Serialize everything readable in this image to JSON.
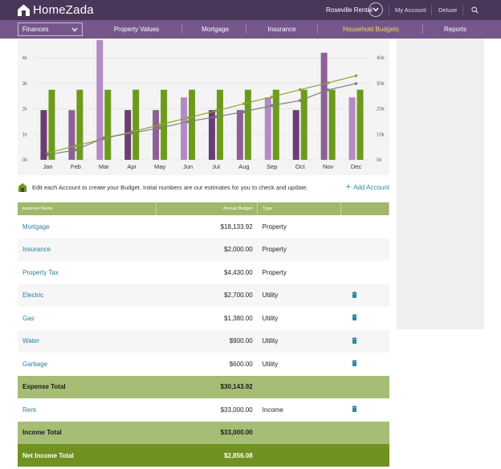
{
  "app": {
    "name": "HomeZada"
  },
  "topbar": {
    "property": "Roseville Rental",
    "my_account": "My Account",
    "plan": "Deluxe",
    "search_icon": "search-icon"
  },
  "nav": {
    "section_select": "Finances",
    "items": [
      "Property Values",
      "Mortgage",
      "Insurance",
      "Household Budgets",
      "Reports"
    ],
    "active_index": 3,
    "colors": {
      "topbar": "#4a3659",
      "navbar": "#76578b",
      "active": "#f2d76a"
    }
  },
  "chart_data": {
    "type": "bar",
    "categories": [
      "Jan",
      "Feb",
      "Mar",
      "Apr",
      "May",
      "Jun",
      "Jul",
      "Aug",
      "Sep",
      "Oct",
      "Nov",
      "Dec"
    ],
    "left_axis": {
      "ticks": [
        "0k",
        "1k",
        "2k",
        "3k",
        "4k"
      ],
      "range": [
        0,
        4600
      ]
    },
    "right_axis": {
      "ticks": [
        "0k",
        "10k",
        "20k",
        "30k",
        "40k"
      ],
      "range": [
        0,
        46000
      ]
    },
    "series": [
      {
        "values": [
          1950,
          1950,
          4700,
          1950,
          1950,
          2450,
          1950,
          1950,
          2450,
          1950,
          4200,
          2450
        ],
        "colors": [
          "#6b3d73",
          "#8e5f96",
          "#b48ac4",
          "#6b3d73",
          "#8e5f96",
          "#b48ac4",
          "#6b3d73",
          "#8e5f96",
          "#b48ac4",
          "#6b3d73",
          "#8e5f96",
          "#b48ac4"
        ]
      },
      {
        "values": [
          2750,
          2750,
          2750,
          2750,
          2750,
          2750,
          2750,
          2750,
          2750,
          2750,
          2750,
          2750
        ],
        "color": "#6e9a1c"
      }
    ],
    "lines": [
      {
        "values": [
          2700,
          5500,
          8200,
          11000,
          13700,
          16500,
          19200,
          22000,
          24700,
          27500,
          30200,
          33000
        ],
        "color": "#8aa82c"
      },
      {
        "values": [
          1950,
          3900,
          8600,
          10550,
          12500,
          14950,
          16900,
          18850,
          21300,
          23250,
          27450,
          29900
        ],
        "color": "#7b8080"
      }
    ],
    "grid": true
  },
  "hint": {
    "text": "Edit each Account to create your Budget. Initial numbers are our estimates for you to check and update.",
    "add_account": "Add Account"
  },
  "table": {
    "headers": [
      "Expense Name",
      "Annual Budget",
      "Type",
      ""
    ],
    "rows": [
      {
        "name": "Mortgage",
        "amount": "$18,133.92",
        "type": "Property",
        "trash": false
      },
      {
        "name": "Insurance",
        "amount": "$2,000.00",
        "type": "Property",
        "trash": false
      },
      {
        "name": "Property Tax",
        "amount": "$4,430.00",
        "type": "Property",
        "trash": false
      },
      {
        "name": "Electric",
        "amount": "$2,700.00",
        "type": "Utility",
        "trash": true
      },
      {
        "name": "Gas",
        "amount": "$1,380.00",
        "type": "Utility",
        "trash": true
      },
      {
        "name": "Water",
        "amount": "$900.00",
        "type": "Utility",
        "trash": true
      },
      {
        "name": "Garbage",
        "amount": "$600.00",
        "type": "Utility",
        "trash": true
      }
    ],
    "expense_total": {
      "label": "Expense Total",
      "amount": "$30,143.92"
    },
    "income_rows": [
      {
        "name": "Rent",
        "amount": "$33,000.00",
        "type": "Income",
        "trash": true
      }
    ],
    "income_total": {
      "label": "Income Total",
      "amount": "$33,000.00"
    },
    "net_income_total": {
      "label": "Net Income Total",
      "amount": "$2,856.08"
    }
  }
}
